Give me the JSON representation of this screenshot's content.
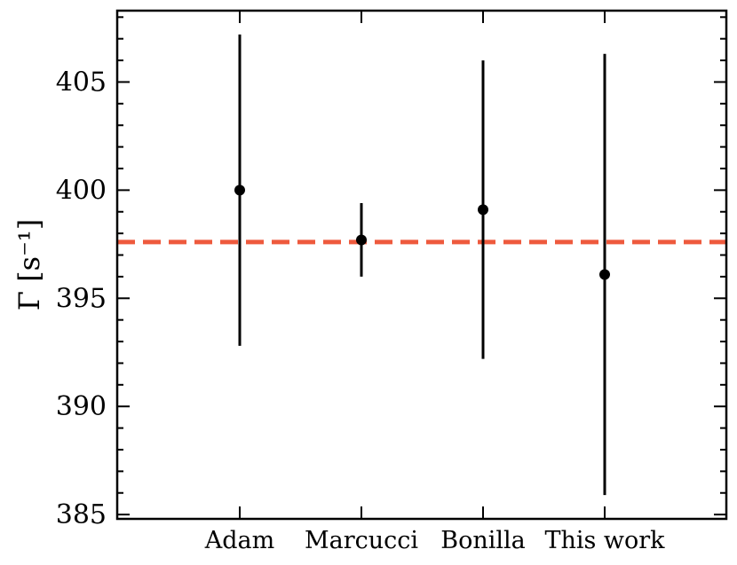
{
  "chart_data": {
    "type": "scatter",
    "categories": [
      "Adam",
      "Marcucci",
      "Bonilla",
      "This work"
    ],
    "values": [
      400.0,
      397.7,
      399.1,
      396.1
    ],
    "error_low": [
      392.8,
      396.0,
      392.2,
      385.9
    ],
    "error_high": [
      407.2,
      399.4,
      406.0,
      406.3
    ],
    "reference_line": 397.6,
    "ylabel": "Γ [s⁻¹]",
    "ylim": [
      384.8,
      408.3
    ],
    "yticks": [
      385,
      390,
      395,
      400,
      405
    ],
    "ytick_labels": [
      "385",
      "390",
      "395",
      "400",
      "405"
    ],
    "minor_tick_step": 1,
    "colors": {
      "points": "#000000",
      "reference": "#ee5a3d"
    }
  }
}
